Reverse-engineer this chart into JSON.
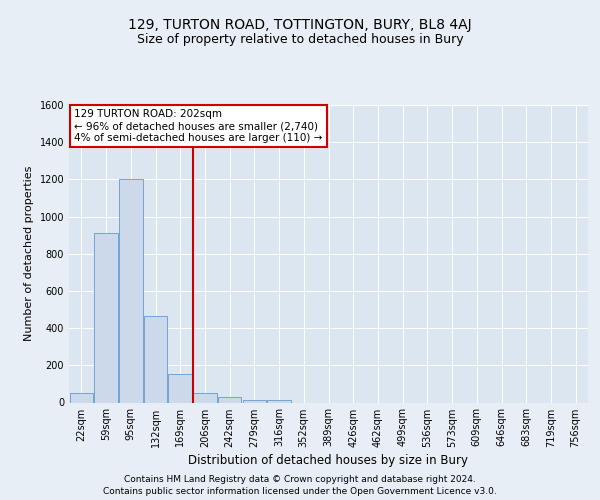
{
  "title_line1": "129, TURTON ROAD, TOTTINGTON, BURY, BL8 4AJ",
  "title_line2": "Size of property relative to detached houses in Bury",
  "xlabel": "Distribution of detached houses by size in Bury",
  "ylabel": "Number of detached properties",
  "footer_line1": "Contains HM Land Registry data © Crown copyright and database right 2024.",
  "footer_line2": "Contains public sector information licensed under the Open Government Licence v3.0.",
  "annotation_line1": "129 TURTON ROAD: 202sqm",
  "annotation_line2": "← 96% of detached houses are smaller (2,740)",
  "annotation_line3": "4% of semi-detached houses are larger (110) →",
  "bar_categories": [
    "22sqm",
    "59sqm",
    "95sqm",
    "132sqm",
    "169sqm",
    "206sqm",
    "242sqm",
    "279sqm",
    "316sqm",
    "352sqm",
    "389sqm",
    "426sqm",
    "462sqm",
    "499sqm",
    "536sqm",
    "573sqm",
    "609sqm",
    "646sqm",
    "683sqm",
    "719sqm",
    "756sqm"
  ],
  "bar_values": [
    50,
    910,
    1200,
    465,
    155,
    50,
    30,
    15,
    15,
    0,
    0,
    0,
    0,
    0,
    0,
    0,
    0,
    0,
    0,
    0,
    0
  ],
  "bar_color": "#ccd9ea",
  "bar_edge_color": "#6699cc",
  "vline_color": "#cc0000",
  "vline_bar_index": 5,
  "ylim": [
    0,
    1600
  ],
  "yticks": [
    0,
    200,
    400,
    600,
    800,
    1000,
    1200,
    1400,
    1600
  ],
  "background_color": "#e8eef5",
  "plot_bg_color": "#dce6f0",
  "annotation_box_color": "#ffffff",
  "annotation_box_edge": "#cc0000",
  "title1_fontsize": 10,
  "title2_fontsize": 9,
  "xlabel_fontsize": 8.5,
  "ylabel_fontsize": 8,
  "annotation_fontsize": 7.5,
  "tick_fontsize": 7,
  "footer_fontsize": 6.5,
  "grid_color": "#ffffff"
}
